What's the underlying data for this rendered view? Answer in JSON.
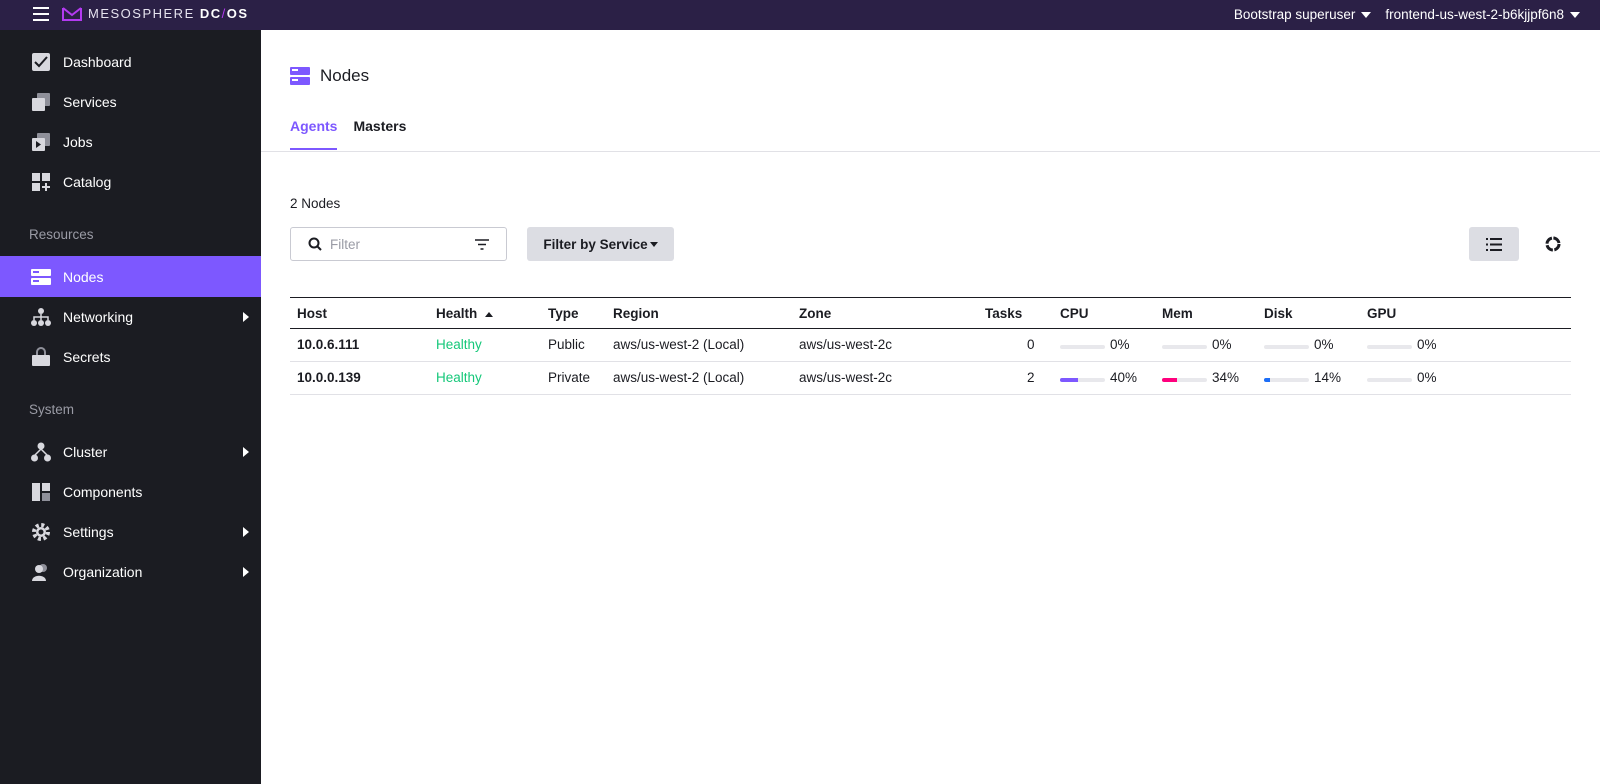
{
  "topbar": {
    "logo_light": "MESOSPHERE",
    "logo_bold_1": "DC",
    "logo_slash": "/",
    "logo_bold_2": "OS",
    "user_menu": "Bootstrap superuser",
    "cluster_menu": "frontend-us-west-2-b6kjjpf6n8"
  },
  "sidebar": {
    "items_top": [
      {
        "label": "Dashboard",
        "icon": "dashboard-icon"
      },
      {
        "label": "Services",
        "icon": "services-icon"
      },
      {
        "label": "Jobs",
        "icon": "jobs-icon"
      },
      {
        "label": "Catalog",
        "icon": "catalog-icon"
      }
    ],
    "section_resources": "Resources",
    "items_resources": [
      {
        "label": "Nodes",
        "icon": "nodes-icon",
        "active": true
      },
      {
        "label": "Networking",
        "icon": "networking-icon",
        "has_submenu": true
      },
      {
        "label": "Secrets",
        "icon": "secrets-icon"
      }
    ],
    "section_system": "System",
    "items_system": [
      {
        "label": "Cluster",
        "icon": "cluster-icon",
        "has_submenu": true
      },
      {
        "label": "Components",
        "icon": "components-icon"
      },
      {
        "label": "Settings",
        "icon": "settings-icon",
        "has_submenu": true
      },
      {
        "label": "Organization",
        "icon": "organization-icon",
        "has_submenu": true
      }
    ]
  },
  "page": {
    "title": "Nodes",
    "tabs": [
      {
        "label": "Agents",
        "active": true
      },
      {
        "label": "Masters",
        "active": false
      }
    ],
    "count": "2 Nodes",
    "filter_placeholder": "Filter",
    "filter_by_service": "Filter by Service"
  },
  "table": {
    "headers": {
      "host": "Host",
      "health": "Health",
      "type": "Type",
      "region": "Region",
      "zone": "Zone",
      "tasks": "Tasks",
      "cpu": "CPU",
      "mem": "Mem",
      "disk": "Disk",
      "gpu": "GPU"
    },
    "rows": [
      {
        "host": "10.0.6.111",
        "health": "Healthy",
        "type": "Public",
        "region": "aws/us-west-2 (Local)",
        "zone": "aws/us-west-2c",
        "tasks": "0",
        "cpu": "0%",
        "mem": "0%",
        "disk": "0%",
        "gpu": "0%",
        "cpu_frac": 0,
        "mem_frac": 0,
        "disk_frac": 0,
        "gpu_frac": 0
      },
      {
        "host": "10.0.0.139",
        "health": "Healthy",
        "type": "Private",
        "region": "aws/us-west-2 (Local)",
        "zone": "aws/us-west-2c",
        "tasks": "2",
        "cpu": "40%",
        "mem": "34%",
        "disk": "14%",
        "gpu": "0%",
        "cpu_frac": 0.4,
        "mem_frac": 0.34,
        "disk_frac": 0.14,
        "gpu_frac": 0
      }
    ],
    "bar_colors": {
      "cpu": "#7d58ff",
      "mem": "#ff007d",
      "disk": "#1d6ef7",
      "gpu": "#cfd0d8"
    }
  }
}
